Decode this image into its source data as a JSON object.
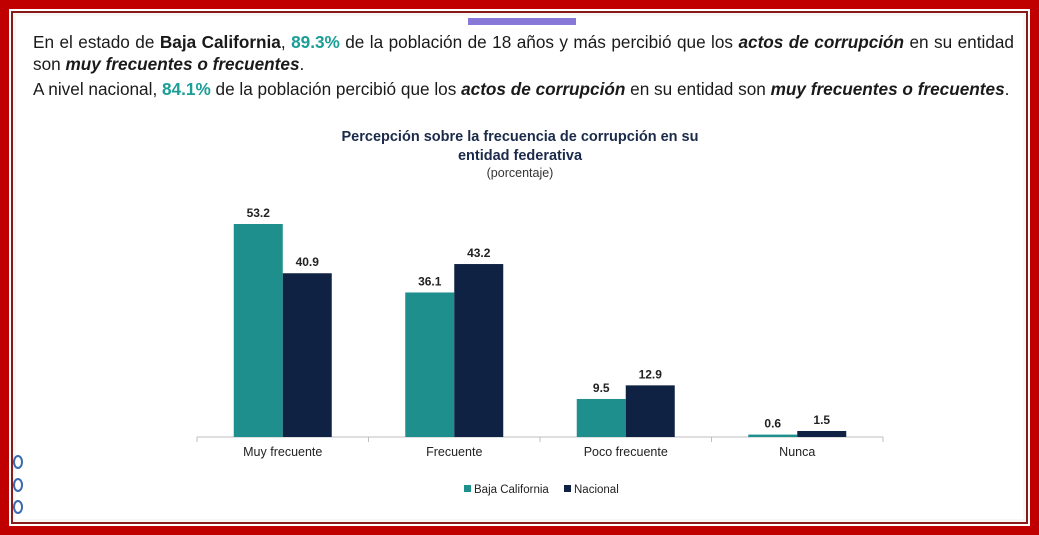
{
  "text": {
    "p1_a": "En el estado de ",
    "p1_state": "Baja California",
    "p1_b": ", ",
    "p1_pct": "89.3%",
    "p1_c": " de la población de 18 años y más percibió que los ",
    "p1_em1": "actos de corrupción",
    "p1_d": " en su entidad son ",
    "p1_em2": "muy frecuentes o frecuentes",
    "p1_e": ".",
    "p2_a": "A nivel nacional, ",
    "p2_pct": "84.1%",
    "p2_b": " de la población percibió que los ",
    "p2_em1": "actos de corrupción",
    "p2_c": " en su entidad son ",
    "p2_em2": "muy frecuentes o frecuentes",
    "p2_d": "."
  },
  "colors": {
    "frame": "#c00000",
    "accent_teal": "#1a9e96",
    "series_baja": "#1f8f8e",
    "series_nacional": "#0f2244"
  },
  "chart_data": {
    "type": "bar",
    "title_line1": "Percepción sobre la frecuencia de corrupción en su",
    "title_line2": "entidad federativa",
    "subtitle": "(porcentaje)",
    "categories": [
      "Muy frecuente",
      "Frecuente",
      "Poco frecuente",
      "Nunca"
    ],
    "series": [
      {
        "name": "Baja California",
        "values": [
          53.2,
          36.1,
          9.5,
          0.6
        ],
        "color": "#1f8f8e"
      },
      {
        "name": "Nacional",
        "values": [
          40.9,
          43.2,
          12.9,
          1.5
        ],
        "color": "#0f2244"
      }
    ],
    "ylim": [
      0,
      60
    ],
    "grid": false,
    "legend_position": "bottom-center"
  }
}
